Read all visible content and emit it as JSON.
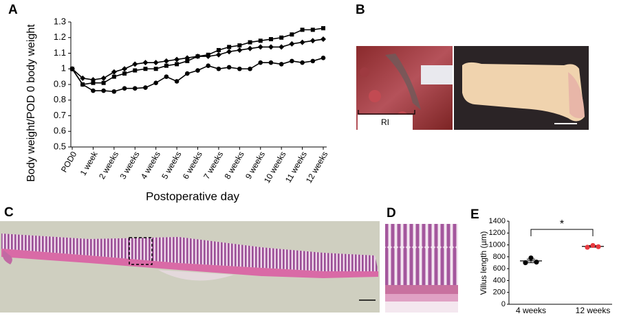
{
  "panel_labels": [
    "A",
    "B",
    "C",
    "D",
    "E"
  ],
  "image_labels": [
    "RI"
  ],
  "chart_data": [
    {
      "type": "line",
      "ylabel": "Body weight/POD 0 body weight",
      "xlabel": "Postoperative day",
      "categories": [
        "POD0",
        null,
        "1 week",
        null,
        "2 weeks",
        null,
        "3 weeks",
        null,
        "4 weeks",
        null,
        "5 weeks",
        null,
        "6 weeks",
        null,
        "7 weeks",
        null,
        "8 weeks",
        null,
        "9 weeks",
        null,
        "10 weeks",
        null,
        "11 weeks",
        null,
        "12 weeks"
      ],
      "ylim": [
        0.5,
        1.3
      ],
      "yticks": [
        0.5,
        0.6,
        0.7,
        0.8,
        0.9,
        1,
        1.1,
        1.2,
        1.3
      ],
      "series": [
        {
          "color": "#000000",
          "marker": "diamond",
          "values": [
            1,
            0.94,
            0.93,
            0.94,
            0.98,
            1.0,
            1.03,
            1.04,
            1.04,
            1.05,
            1.06,
            1.07,
            1.08,
            1.08,
            1.09,
            1.11,
            1.12,
            1.13,
            1.14,
            1.14,
            1.14,
            1.16,
            1.17,
            1.18,
            1.19
          ]
        },
        {
          "color": "#000000",
          "marker": "square",
          "values": [
            1,
            0.9,
            0.91,
            0.91,
            0.95,
            0.97,
            0.99,
            1.0,
            1.0,
            1.02,
            1.03,
            1.05,
            1.08,
            1.09,
            1.12,
            1.14,
            1.15,
            1.17,
            1.18,
            1.19,
            1.2,
            1.22,
            1.25,
            1.25,
            1.26
          ]
        },
        {
          "color": "#000000",
          "marker": "circle",
          "values": [
            1,
            0.9,
            0.86,
            0.86,
            0.855,
            0.875,
            0.875,
            0.88,
            0.91,
            0.95,
            0.92,
            0.97,
            0.99,
            1.02,
            1.0,
            1.01,
            1.0,
            1.0,
            1.04,
            1.04,
            1.03,
            1.05,
            1.04,
            1.05,
            1.07
          ]
        }
      ]
    },
    {
      "type": "dotplot",
      "ylabel": "Villus length (µm)",
      "ylim": [
        0,
        1400
      ],
      "yticks": [
        0,
        200,
        400,
        600,
        800,
        1000,
        1200,
        1400
      ],
      "annotation": "*",
      "groups": [
        {
          "name": "4 weeks",
          "color": "#000000",
          "values": [
            780,
            700,
            710
          ],
          "mean": 730,
          "error": 30
        },
        {
          "name": "12 weeks",
          "color": "#e8393f",
          "values": [
            990,
            960,
            970
          ],
          "mean": 975,
          "error": 15
        }
      ]
    }
  ]
}
